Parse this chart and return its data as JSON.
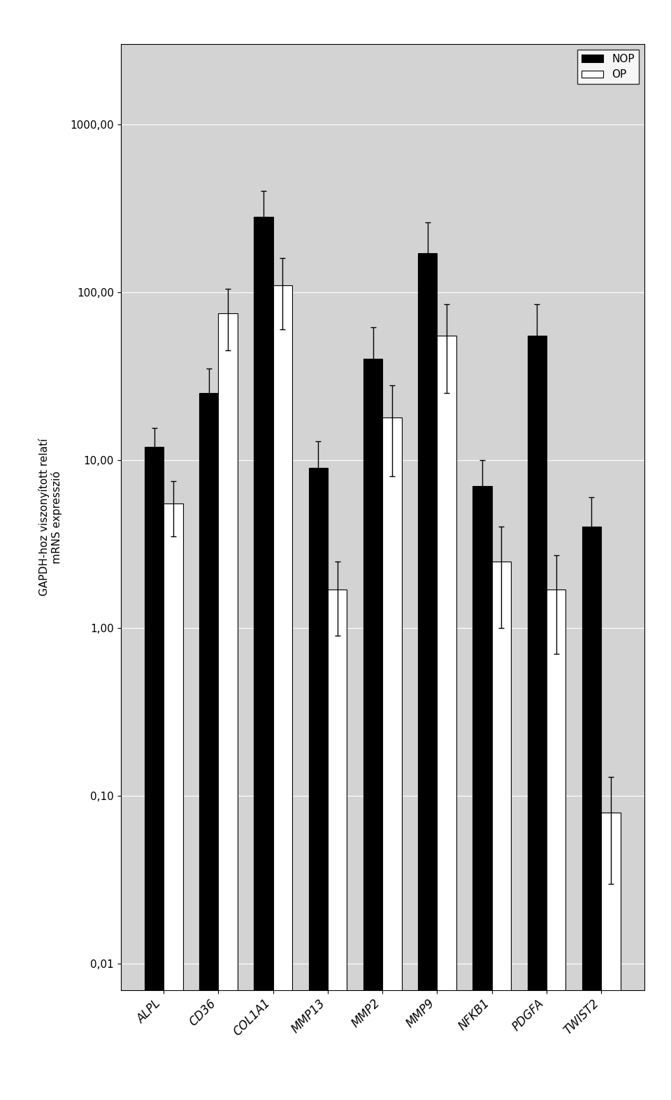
{
  "categories": [
    "ALPL",
    "CD36",
    "COL1A1",
    "MMP13",
    "MMP2",
    "MMP9",
    "NFKB1",
    "PDGFA",
    "TWIST2"
  ],
  "nop_values": [
    12.0,
    25.0,
    280.0,
    9.0,
    40.0,
    170.0,
    7.0,
    55.0,
    4.0
  ],
  "op_values": [
    5.5,
    75.0,
    110.0,
    1.7,
    18.0,
    55.0,
    2.5,
    1.7,
    0.08
  ],
  "nop_errors": [
    3.5,
    10.0,
    120.0,
    4.0,
    22.0,
    90.0,
    3.0,
    30.0,
    2.0
  ],
  "op_errors": [
    2.0,
    30.0,
    50.0,
    0.8,
    10.0,
    30.0,
    1.5,
    1.0,
    0.05
  ],
  "nop_color": "#000000",
  "op_color": "#ffffff",
  "legend_labels": [
    "NOP",
    "OP"
  ],
  "ylabel": "GAPDH-hoz viszonyított relatí\nmRNS expresszió",
  "yticks": [
    0.01,
    0.1,
    1.0,
    10.0,
    100.0,
    1000.0
  ],
  "ytick_labels": [
    "0,01",
    "0,10",
    "1,00",
    "10,00",
    "100,00",
    "1000,00"
  ],
  "ylim": [
    0.007,
    3000.0
  ],
  "background_color": "#d3d3d3",
  "bar_width": 0.35,
  "title": "",
  "fig_bg": "#ffffff"
}
